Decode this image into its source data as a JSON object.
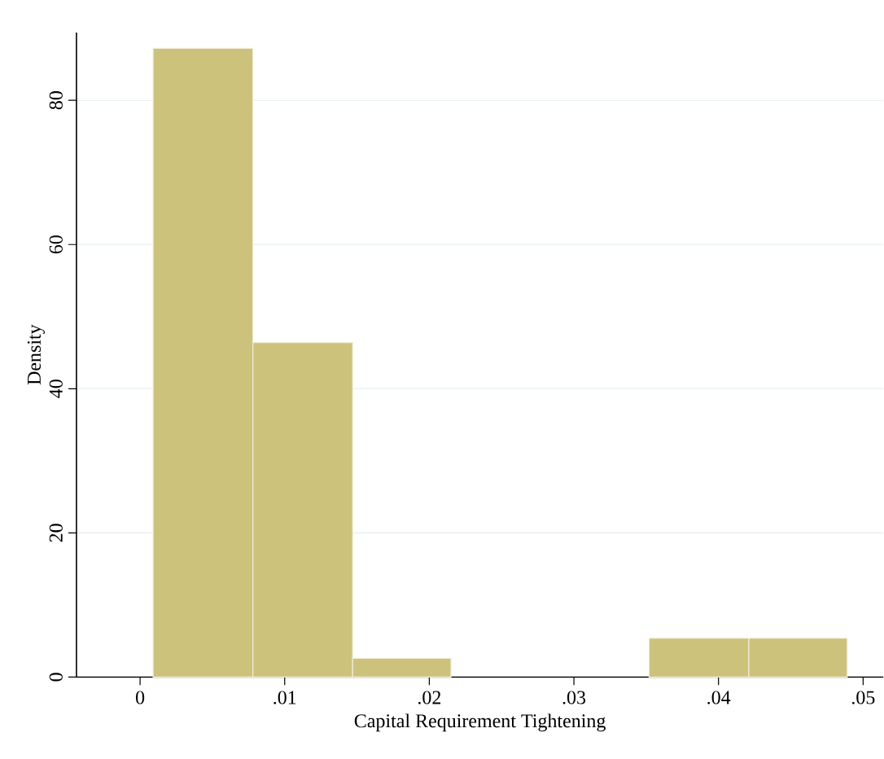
{
  "chart_data": {
    "type": "histogram",
    "xlabel": "Capital Requirement Tightening",
    "ylabel": "Density",
    "bins": [
      0.0009,
      0.0078,
      0.0147,
      0.0215,
      0.0352,
      0.0421,
      0.0489
    ],
    "values": [
      87.2,
      46.4,
      2.6,
      0,
      5.4,
      5.4
    ],
    "color": "#cdc27c",
    "xlim": [
      -0.0044,
      0.0514
    ],
    "ylim": [
      0,
      89.4
    ],
    "xticks": [
      {
        "value": 0,
        "label": "0"
      },
      {
        "value": 0.01,
        "label": ".01"
      },
      {
        "value": 0.02,
        "label": ".02"
      },
      {
        "value": 0.03,
        "label": ".03"
      },
      {
        "value": 0.04,
        "label": ".04"
      },
      {
        "value": 0.05,
        "label": ".05"
      }
    ],
    "yticks": [
      0,
      20,
      40,
      60,
      80
    ],
    "grid": "y"
  }
}
